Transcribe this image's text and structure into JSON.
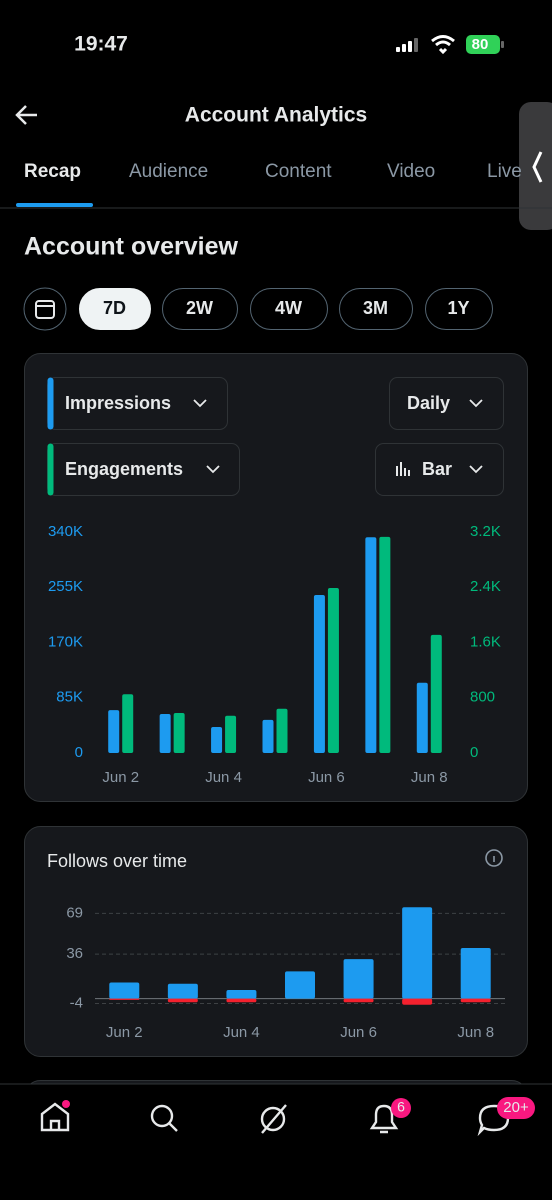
{
  "status_bar": {
    "time": "19:47",
    "battery": "80"
  },
  "header": {
    "title": "Account Analytics"
  },
  "tabs": [
    "Recap",
    "Audience",
    "Content",
    "Video",
    "Live"
  ],
  "section_title": "Account overview",
  "ranges": [
    "7D",
    "2W",
    "4W",
    "3M",
    "1Y"
  ],
  "selectors": {
    "interval": "Daily",
    "style": "Bar"
  },
  "nav_badges": {
    "notifications": "6",
    "messages": "20+"
  },
  "chart_data": [
    {
      "type": "bar",
      "categories": [
        "Jun 2",
        null,
        "Jun 4",
        null,
        "Jun 6",
        null,
        "Jun 8"
      ],
      "series": [
        {
          "name": "Impressions",
          "color": "#1d9bf0",
          "values": [
            66000,
            60000,
            40000,
            51000,
            243000,
            332000,
            108000
          ]
        },
        {
          "name": "Engagements",
          "color": "#00ba7c",
          "axis": "y2",
          "values": [
            850,
            580,
            540,
            640,
            2390,
            3130,
            1710
          ]
        }
      ],
      "ylim": [
        0,
        340000
      ],
      "yticks": [
        0,
        {
          "value": 85000,
          "label": "85K"
        },
        {
          "value": 170000,
          "label": "170K"
        },
        {
          "value": 255000,
          "label": "255K"
        },
        {
          "value": 340000,
          "label": "340K"
        }
      ],
      "y2lim": [
        0,
        3200
      ],
      "y2ticks": [
        0,
        800,
        {
          "value": 1600,
          "label": "1.6K"
        },
        {
          "value": 2400,
          "label": "2.4K"
        },
        {
          "value": 3200,
          "label": "3.2K"
        }
      ],
      "grid": false
    },
    {
      "type": "bar",
      "title": "Follows over time",
      "categories": [
        "Jun 2",
        null,
        "Jun 4",
        null,
        "Jun 6",
        null,
        "Jun 8"
      ],
      "series": [
        {
          "color": "#1d9bf0",
          "values": [
            13,
            12,
            7,
            22,
            32,
            74,
            41
          ]
        },
        {
          "color": "#f4212e",
          "values": [
            -1,
            -3,
            -3,
            0,
            -3,
            -5,
            -3
          ]
        }
      ],
      "ylim": [
        -6,
        75
      ],
      "yticks": [
        -4,
        36,
        69
      ],
      "grid": true
    }
  ]
}
